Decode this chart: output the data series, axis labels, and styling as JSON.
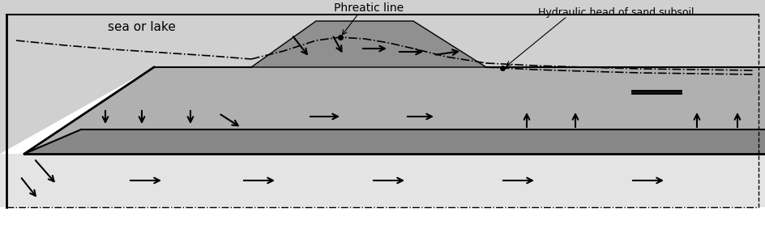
{
  "fig_width": 9.44,
  "fig_height": 2.78,
  "dpi": 100,
  "colors": {
    "white": "#ffffff",
    "sea_light": "#d0d0d0",
    "polder_medium": "#b0b0b0",
    "clay_dark": "#888888",
    "sand_light": "#e4e4e4",
    "dike_color": "#909090",
    "black": "#000000"
  },
  "labels": {
    "sea_or_lake": "sea or lake",
    "phreatic_line": "Phreatic line",
    "hydraulic_head": "Hydraulic head of sand subsoil"
  }
}
